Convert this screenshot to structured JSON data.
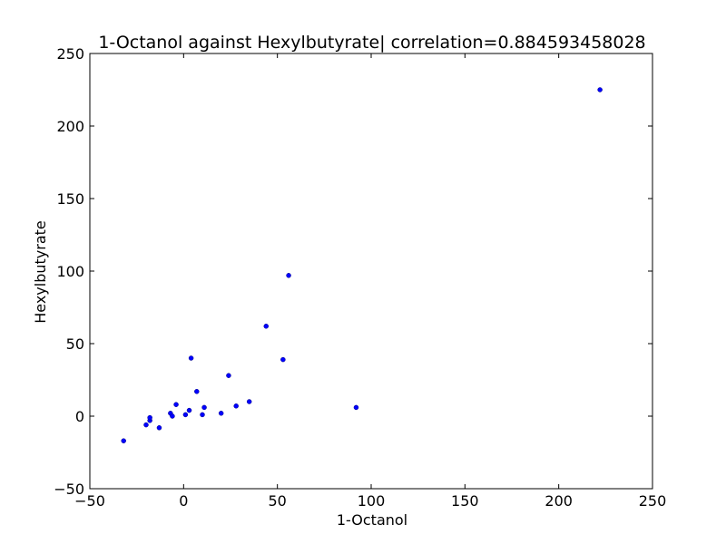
{
  "chart_data": {
    "type": "scatter",
    "title": "1-Octanol against Hexylbutyrate| correlation=0.884593458028",
    "xlabel": "1-Octanol",
    "ylabel": "Hexylbutyrate",
    "xlim": [
      -50,
      250
    ],
    "ylim": [
      -50,
      250
    ],
    "xticks": [
      -50,
      0,
      50,
      100,
      150,
      200,
      250
    ],
    "yticks": [
      -50,
      0,
      50,
      100,
      150,
      200,
      250
    ],
    "xtick_labels": [
      "−50",
      "0",
      "50",
      "100",
      "150",
      "200",
      "250"
    ],
    "ytick_labels": [
      "−50",
      "0",
      "50",
      "100",
      "150",
      "200",
      "250"
    ],
    "grid": false,
    "marker_color": "#0000ff",
    "points": [
      {
        "x": -32,
        "y": -17
      },
      {
        "x": -20,
        "y": -6
      },
      {
        "x": -18,
        "y": -3
      },
      {
        "x": -18,
        "y": -1
      },
      {
        "x": -13,
        "y": -8
      },
      {
        "x": -7,
        "y": 2
      },
      {
        "x": -6,
        "y": 0
      },
      {
        "x": -4,
        "y": 8
      },
      {
        "x": 1,
        "y": 1
      },
      {
        "x": 3,
        "y": 4
      },
      {
        "x": 4,
        "y": 40
      },
      {
        "x": 7,
        "y": 17
      },
      {
        "x": 10,
        "y": 1
      },
      {
        "x": 11,
        "y": 6
      },
      {
        "x": 20,
        "y": 2
      },
      {
        "x": 24,
        "y": 28
      },
      {
        "x": 28,
        "y": 7
      },
      {
        "x": 35,
        "y": 10
      },
      {
        "x": 44,
        "y": 62
      },
      {
        "x": 53,
        "y": 39
      },
      {
        "x": 56,
        "y": 97
      },
      {
        "x": 92,
        "y": 6
      },
      {
        "x": 222,
        "y": 225
      }
    ]
  }
}
